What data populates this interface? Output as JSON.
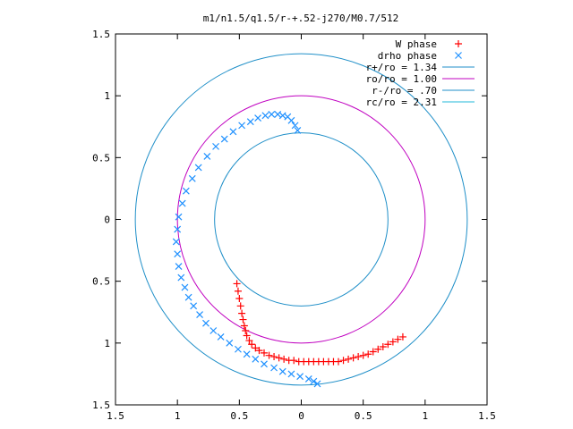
{
  "chart_data": {
    "type": "scatter",
    "title": "m1/n1.5/q1.5/r-+.52-j270/M0.7/512",
    "xlabel": "",
    "ylabel": "",
    "xlim": [
      -1.5,
      1.5
    ],
    "ylim": [
      -1.5,
      1.5
    ],
    "x_ticks": [
      "1.5",
      "1",
      "0.5",
      "0",
      "0.5",
      "1",
      "1.5"
    ],
    "y_ticks": [
      "1.5",
      "1",
      "0.5",
      "0",
      "0.5",
      "1",
      "1.5"
    ],
    "x_tick_values": [
      -1.5,
      -1,
      -0.5,
      0,
      0.5,
      1,
      1.5
    ],
    "y_tick_values": [
      1.5,
      1,
      0.5,
      0,
      -0.5,
      -1,
      -1.5
    ],
    "grid": false,
    "legend_position": "top-right",
    "legend": [
      {
        "label": "W phase",
        "color": "#ff0000",
        "marker": "+"
      },
      {
        "label": "drho phase",
        "color": "#1e90ff",
        "marker": "x"
      },
      {
        "label": "r+/ro = 1.34",
        "color": "#1f8fc8",
        "marker": "line"
      },
      {
        "label": "ro/ro = 1.00",
        "color": "#c000c0",
        "marker": "line"
      },
      {
        "label": "r-/ro = .70",
        "color": "#1f8fc8",
        "marker": "line"
      },
      {
        "label": "rc/ro = 2.31",
        "color": "#22b8d8",
        "marker": "line"
      }
    ],
    "circles": [
      {
        "name": "r+/ro = 1.34",
        "radius": 1.34,
        "color": "#1f8fc8"
      },
      {
        "name": "ro/ro = 1.00",
        "radius": 1.0,
        "color": "#c000c0"
      },
      {
        "name": "r-/ro = .70",
        "radius": 0.7,
        "color": "#1f8fc8"
      }
    ],
    "series": [
      {
        "name": "W phase",
        "color": "#ff0000",
        "marker": "+",
        "x": [
          -0.52,
          -0.51,
          -0.5,
          -0.49,
          -0.48,
          -0.47,
          -0.46,
          -0.45,
          -0.44,
          -0.42,
          -0.4,
          -0.37,
          -0.34,
          -0.3,
          -0.26,
          -0.22,
          -0.18,
          -0.14,
          -0.1,
          -0.06,
          -0.02,
          0.02,
          0.06,
          0.1,
          0.14,
          0.18,
          0.22,
          0.26,
          0.3,
          0.34,
          0.38,
          0.42,
          0.46,
          0.5,
          0.54,
          0.58,
          0.62,
          0.66,
          0.7,
          0.74,
          0.78,
          0.82
        ],
        "y": [
          -0.52,
          -0.58,
          -0.64,
          -0.7,
          -0.76,
          -0.81,
          -0.86,
          -0.9,
          -0.94,
          -0.98,
          -1.01,
          -1.04,
          -1.06,
          -1.08,
          -1.1,
          -1.11,
          -1.12,
          -1.13,
          -1.14,
          -1.14,
          -1.15,
          -1.15,
          -1.15,
          -1.15,
          -1.15,
          -1.15,
          -1.15,
          -1.15,
          -1.15,
          -1.14,
          -1.13,
          -1.12,
          -1.11,
          -1.1,
          -1.09,
          -1.07,
          -1.05,
          -1.03,
          -1.01,
          -0.99,
          -0.97,
          -0.95
        ]
      },
      {
        "name": "drho phase",
        "color": "#1e90ff",
        "marker": "x",
        "x": [
          -0.03,
          -0.05,
          -0.08,
          -0.11,
          -0.15,
          -0.19,
          -0.24,
          -0.29,
          -0.35,
          -0.41,
          -0.48,
          -0.55,
          -0.62,
          -0.69,
          -0.76,
          -0.83,
          -0.88,
          -0.93,
          -0.96,
          -0.99,
          -1.0,
          -1.01,
          -1.0,
          -0.99,
          -0.97,
          -0.94,
          -0.91,
          -0.87,
          -0.82,
          -0.77,
          -0.71,
          -0.65,
          -0.58,
          -0.51,
          -0.44,
          -0.37,
          -0.3,
          -0.22,
          -0.15,
          -0.08,
          -0.01,
          0.06,
          0.1,
          0.13
        ],
        "y": [
          0.72,
          0.76,
          0.8,
          0.83,
          0.84,
          0.85,
          0.85,
          0.84,
          0.82,
          0.79,
          0.76,
          0.71,
          0.65,
          0.59,
          0.51,
          0.42,
          0.33,
          0.23,
          0.13,
          0.02,
          -0.08,
          -0.18,
          -0.28,
          -0.38,
          -0.47,
          -0.55,
          -0.63,
          -0.7,
          -0.77,
          -0.84,
          -0.9,
          -0.95,
          -1.0,
          -1.05,
          -1.09,
          -1.13,
          -1.17,
          -1.2,
          -1.23,
          -1.25,
          -1.27,
          -1.29,
          -1.31,
          -1.33
        ]
      }
    ]
  }
}
